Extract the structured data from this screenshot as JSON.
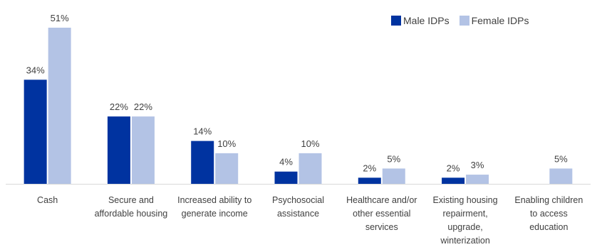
{
  "chart_data": {
    "type": "bar",
    "categories": [
      [
        "Cash"
      ],
      [
        "Secure and",
        "affordable housing"
      ],
      [
        "Increased ability to",
        "generate income"
      ],
      [
        "Psychosocial",
        "assistance"
      ],
      [
        "Healthcare and/or",
        "other essential",
        "services"
      ],
      [
        "Existing housing",
        "repairment,",
        "upgrade,",
        "winterization"
      ],
      [
        "Enabling children",
        "to access",
        "education"
      ]
    ],
    "series": [
      {
        "name": "Male IDPs",
        "color": "#0033a0",
        "values": [
          34,
          22,
          14,
          4,
          2,
          2,
          null
        ],
        "labels": [
          "34%",
          "22%",
          "14%",
          "4%",
          "2%",
          "2%",
          ""
        ]
      },
      {
        "name": "Female IDPs",
        "color": "#b3c3e5",
        "values": [
          51,
          22,
          10,
          10,
          5,
          3,
          5
        ],
        "labels": [
          "51%",
          "22%",
          "10%",
          "10%",
          "5%",
          "3%",
          "5%"
        ]
      }
    ],
    "ylim": [
      0,
      51
    ],
    "grid": false,
    "legend_position": "top-right"
  }
}
